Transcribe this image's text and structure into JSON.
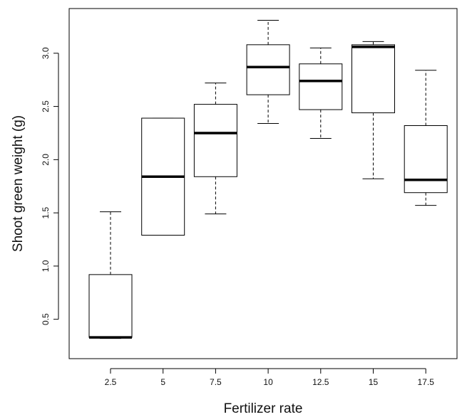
{
  "chart_data": {
    "type": "boxplot",
    "title": "",
    "xlabel": "Fertilizer rate",
    "ylabel": "Shoot green weight (g)",
    "categories": [
      "2.5",
      "5",
      "7.5",
      "10",
      "12.5",
      "15",
      "17.5"
    ],
    "boxes": [
      {
        "category": "2.5",
        "whisker_low": 0.32,
        "q1": 0.33,
        "median": 0.33,
        "q3": 0.92,
        "whisker_high": 1.51
      },
      {
        "category": "5",
        "whisker_low": 1.29,
        "q1": 1.29,
        "median": 1.84,
        "q3": 2.39,
        "whisker_high": 2.39
      },
      {
        "category": "7.5",
        "whisker_low": 1.49,
        "q1": 1.84,
        "median": 2.25,
        "q3": 2.52,
        "whisker_high": 2.72
      },
      {
        "category": "10",
        "whisker_low": 2.34,
        "q1": 2.61,
        "median": 2.87,
        "q3": 3.08,
        "whisker_high": 3.31
      },
      {
        "category": "12.5",
        "whisker_low": 2.2,
        "q1": 2.47,
        "median": 2.74,
        "q3": 2.9,
        "whisker_high": 3.05
      },
      {
        "category": "15",
        "whisker_low": 1.82,
        "q1": 2.44,
        "median": 3.06,
        "q3": 3.08,
        "whisker_high": 3.11
      },
      {
        "category": "17.5",
        "whisker_low": 1.57,
        "q1": 1.69,
        "median": 1.81,
        "q3": 2.32,
        "whisker_high": 2.84
      }
    ],
    "ylim": [
      0.13,
      3.42
    ],
    "yticks": [
      "0.5",
      "1.0",
      "1.5",
      "2.0",
      "2.5",
      "3.0"
    ],
    "grid": false,
    "colors": {
      "box_fill": "#ffffff",
      "line": "#000000"
    }
  }
}
